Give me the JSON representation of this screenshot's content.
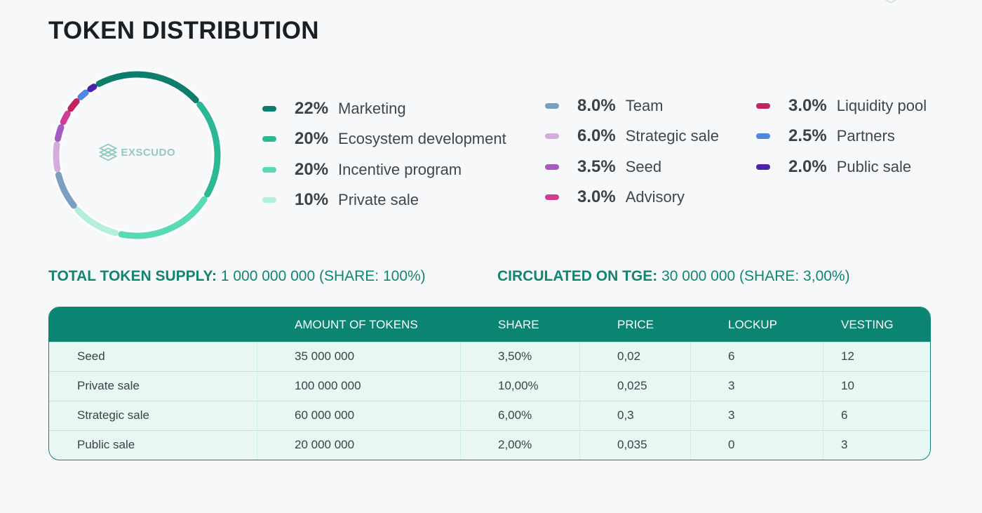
{
  "title": "TOKEN DISTRIBUTION",
  "brand": {
    "name": "EXSCUDO",
    "logo_icon": "hexagon-layers-icon",
    "color": "#96c8c2"
  },
  "chart_data": {
    "type": "pie",
    "categories": [
      "Marketing",
      "Ecosystem development",
      "Incentive program",
      "Private sale",
      "Team",
      "Strategic sale",
      "Seed",
      "Advisory",
      "Liquidity pool",
      "Partners",
      "Public sale"
    ],
    "values": [
      22,
      20,
      20,
      10,
      8.0,
      6.0,
      3.5,
      3.0,
      3.0,
      2.5,
      2.0
    ],
    "labels": [
      "22%",
      "20%",
      "20%",
      "10%",
      "8.0%",
      "6.0%",
      "3.5%",
      "3.0%",
      "3.0%",
      "2.5%",
      "2.0%"
    ],
    "colors": [
      "#0f7d6c",
      "#2db895",
      "#5ad9b5",
      "#b6eedd",
      "#7a9fbf",
      "#d5acdc",
      "#a45ac0",
      "#cf3e92",
      "#c2245e",
      "#4f86e4",
      "#4b22a8"
    ],
    "legend_placement": "right"
  },
  "supply": {
    "total_label": "TOTAL TOKEN SUPPLY:",
    "total_value": "1 000 000 000 (SHARE: 100%)",
    "tge_label": "CIRCULATED ON TGE:",
    "tge_value": "30 000 000 (SHARE: 3,00%)"
  },
  "table": {
    "headers": [
      "",
      "AMOUNT OF TOKENS",
      "SHARE",
      "PRICE",
      "LOCKUP",
      "VESTING"
    ],
    "rows": [
      [
        "Seed",
        "35 000 000",
        "3,50%",
        "0,02",
        "6",
        "12"
      ],
      [
        "Private sale",
        "100 000 000",
        "10,00%",
        "0,025",
        "3",
        "10"
      ],
      [
        "Strategic sale",
        "60 000 000",
        "6,00%",
        "0,3",
        "3",
        "6"
      ],
      [
        "Public sale",
        "20 000 000",
        "2,00%",
        "0,035",
        "0",
        "3"
      ]
    ]
  }
}
